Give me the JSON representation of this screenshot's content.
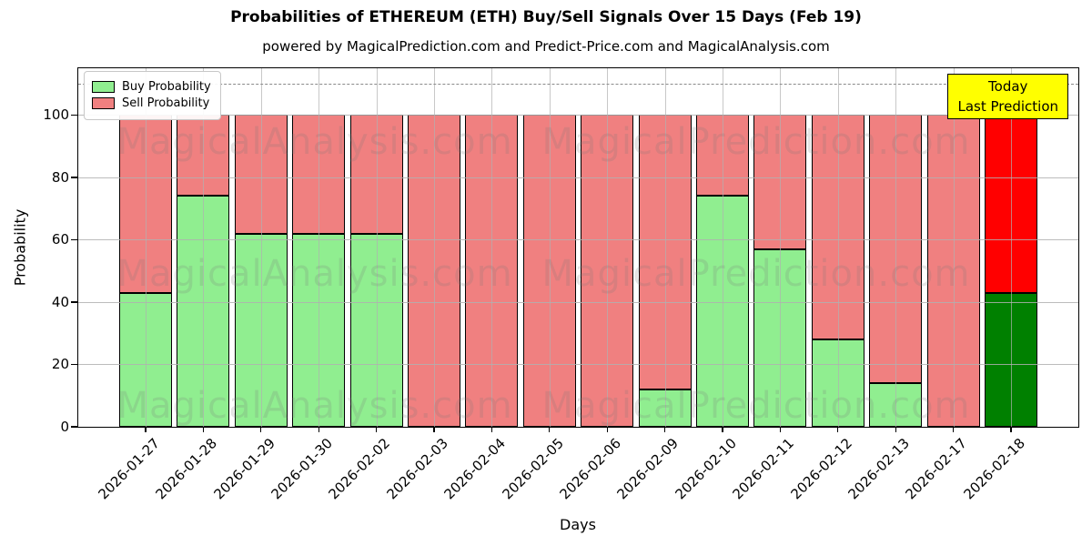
{
  "title": "Probabilities of ETHEREUM (ETH) Buy/Sell Signals Over 15 Days (Feb 19)",
  "subtitle": "powered by MagicalPrediction.com and Predict-Price.com and MagicalAnalysis.com",
  "watermarks": {
    "left_text": "MagicalAnalysis.com",
    "right_text": "MagicalPrediction.com"
  },
  "legend": {
    "items": [
      {
        "label": "Buy Probability",
        "color": "#90EE90"
      },
      {
        "label": "Sell Probability",
        "color": "#F08080"
      }
    ]
  },
  "annotation_box": {
    "line1": "Today",
    "line2": "Last Prediction",
    "bg": "#FFFF00"
  },
  "colors": {
    "buy": "#90EE90",
    "sell": "#F08080",
    "buy_today": "#008000",
    "sell_today": "#FF0000",
    "grid": "#b0b0b0",
    "dashed": "#8a8a8a",
    "bar_edge": "#000000"
  },
  "chart_data": {
    "type": "bar",
    "stacked": true,
    "title": "Probabilities of ETHEREUM (ETH) Buy/Sell Signals Over 15 Days (Feb 19)",
    "xlabel": "Days",
    "ylabel": "Probability",
    "categories": [
      "2026-01-27",
      "2026-01-28",
      "2026-01-29",
      "2026-01-30",
      "2026-02-02",
      "2026-02-03",
      "2026-02-04",
      "2026-02-05",
      "2026-02-06",
      "2026-02-09",
      "2026-02-10",
      "2026-02-11",
      "2026-02-12",
      "2026-02-13",
      "2026-02-17",
      "2026-02-18"
    ],
    "series": [
      {
        "name": "Buy Probability",
        "values": [
          43,
          74,
          62,
          62,
          62,
          0,
          0,
          0,
          0,
          12,
          74,
          57,
          28,
          14,
          0,
          43
        ]
      },
      {
        "name": "Sell Probability",
        "values": [
          57,
          26,
          38,
          38,
          38,
          100,
          100,
          100,
          100,
          88,
          26,
          43,
          72,
          86,
          100,
          57
        ]
      }
    ],
    "yticks": [
      0,
      20,
      40,
      60,
      80,
      100
    ],
    "ylim": [
      0,
      115
    ],
    "dashed_line_y": 110,
    "grid": true,
    "legend_position": "upper-left",
    "x_tick_rotation_deg": 45
  }
}
